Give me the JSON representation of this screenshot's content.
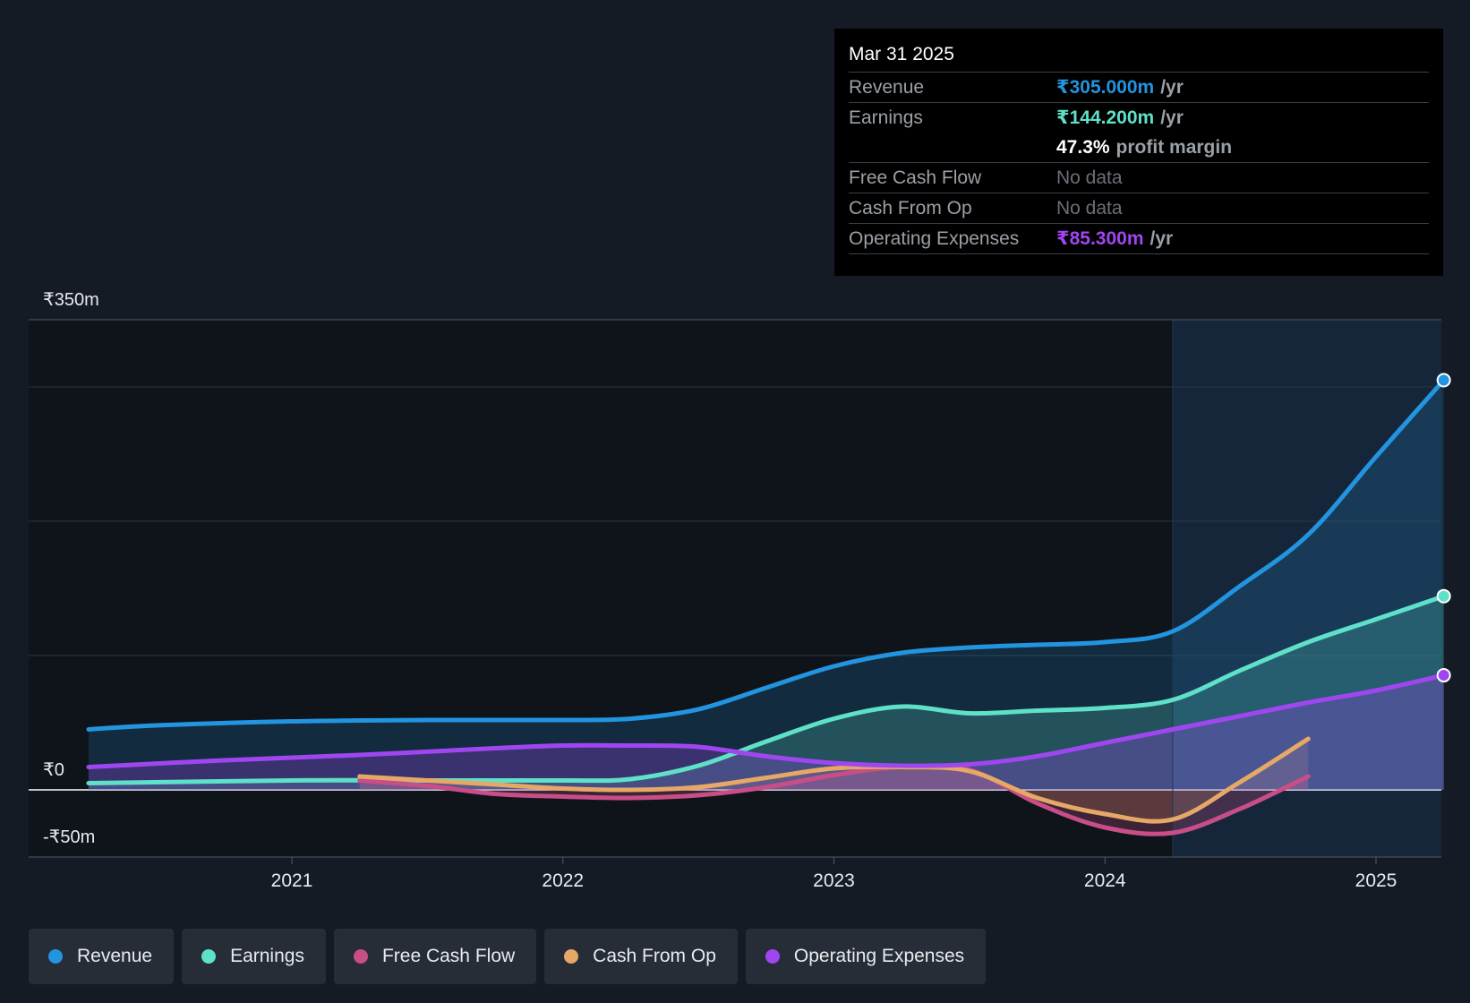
{
  "colors": {
    "background": "#151b24",
    "revenue": "#2394df",
    "earnings": "#5fe0c8",
    "free_cash_flow": "#c84e87",
    "cash_from_op": "#e5a866",
    "operating_expenses": "#a046f0",
    "past_shade": "#0f141b",
    "forecast_shade": "#16263a"
  },
  "tooltip": {
    "date": "Mar 31 2025",
    "rows": [
      {
        "label": "Revenue",
        "value": "₹305.000m",
        "unit": "/yr",
        "color": "#2394df"
      },
      {
        "label": "Earnings",
        "value": "₹144.200m",
        "unit": "/yr",
        "color": "#5fe0c8"
      },
      {
        "label": "",
        "value": "47.3%",
        "unit": "profit margin"
      },
      {
        "label": "Free Cash Flow",
        "value": "No data"
      },
      {
        "label": "Cash From Op",
        "value": "No data"
      },
      {
        "label": "Operating Expenses",
        "value": "₹85.300m",
        "unit": "/yr",
        "color": "#a046f0"
      }
    ]
  },
  "legend": [
    {
      "label": "Revenue",
      "color": "#2394df"
    },
    {
      "label": "Earnings",
      "color": "#5fe0c8"
    },
    {
      "label": "Free Cash Flow",
      "color": "#c84e87"
    },
    {
      "label": "Cash From Op",
      "color": "#e5a866"
    },
    {
      "label": "Operating Expenses",
      "color": "#a046f0"
    }
  ],
  "chart_data": {
    "type": "line",
    "title": "",
    "xlabel": "",
    "ylabel": "",
    "x_range": [
      2020.22,
      2025.25
    ],
    "ylim": [
      -50,
      350
    ],
    "y_tick_labels": [
      {
        "value": 350,
        "label": "₹350m"
      },
      {
        "value": 0,
        "label": "₹0"
      },
      {
        "value": -50,
        "label": "-₹50m"
      }
    ],
    "gridlines": [
      350,
      300,
      200,
      100,
      0,
      -50
    ],
    "x_ticks": [
      {
        "value": 2021,
        "label": "2021"
      },
      {
        "value": 2022,
        "label": "2022"
      },
      {
        "value": 2023,
        "label": "2023"
      },
      {
        "value": 2024,
        "label": "2024"
      },
      {
        "value": 2025,
        "label": "2025"
      }
    ],
    "forecast_start": 2024.25,
    "legend_position": "bottom",
    "series": [
      {
        "name": "Revenue",
        "color": "#2394df",
        "points": [
          [
            2020.25,
            45
          ],
          [
            2020.5,
            48
          ],
          [
            2021.0,
            51
          ],
          [
            2021.5,
            52
          ],
          [
            2022.0,
            52
          ],
          [
            2022.25,
            53
          ],
          [
            2022.5,
            60
          ],
          [
            2022.75,
            76
          ],
          [
            2023.0,
            92
          ],
          [
            2023.25,
            102
          ],
          [
            2023.5,
            106
          ],
          [
            2023.75,
            108
          ],
          [
            2024.0,
            110
          ],
          [
            2024.25,
            118
          ],
          [
            2024.5,
            152
          ],
          [
            2024.75,
            190
          ],
          [
            2025.0,
            248
          ],
          [
            2025.25,
            305
          ]
        ]
      },
      {
        "name": "Earnings",
        "color": "#5fe0c8",
        "points": [
          [
            2020.25,
            5
          ],
          [
            2021.0,
            7
          ],
          [
            2021.5,
            7
          ],
          [
            2022.0,
            7
          ],
          [
            2022.25,
            8
          ],
          [
            2022.5,
            18
          ],
          [
            2022.75,
            36
          ],
          [
            2023.0,
            53
          ],
          [
            2023.25,
            62
          ],
          [
            2023.5,
            57
          ],
          [
            2023.75,
            59
          ],
          [
            2024.0,
            61
          ],
          [
            2024.25,
            67
          ],
          [
            2024.5,
            89
          ],
          [
            2024.75,
            110
          ],
          [
            2025.0,
            127
          ],
          [
            2025.25,
            144.2
          ]
        ]
      },
      {
        "name": "Free Cash Flow",
        "color": "#c84e87",
        "points": [
          [
            2021.25,
            7
          ],
          [
            2021.5,
            3
          ],
          [
            2021.75,
            -3
          ],
          [
            2022.0,
            -5
          ],
          [
            2022.25,
            -6
          ],
          [
            2022.5,
            -4
          ],
          [
            2022.75,
            2
          ],
          [
            2023.0,
            11
          ],
          [
            2023.25,
            17
          ],
          [
            2023.5,
            15
          ],
          [
            2023.75,
            -10
          ],
          [
            2024.0,
            -28
          ],
          [
            2024.25,
            -32
          ],
          [
            2024.5,
            -14
          ],
          [
            2024.75,
            10
          ]
        ]
      },
      {
        "name": "Cash From Op",
        "color": "#e5a866",
        "points": [
          [
            2021.25,
            10
          ],
          [
            2021.5,
            7
          ],
          [
            2021.75,
            4
          ],
          [
            2022.0,
            1
          ],
          [
            2022.25,
            0
          ],
          [
            2022.5,
            2
          ],
          [
            2022.75,
            9
          ],
          [
            2023.0,
            16
          ],
          [
            2023.25,
            17
          ],
          [
            2023.5,
            14
          ],
          [
            2023.75,
            -6
          ],
          [
            2024.0,
            -18
          ],
          [
            2024.25,
            -22
          ],
          [
            2024.5,
            6
          ],
          [
            2024.75,
            38
          ]
        ]
      },
      {
        "name": "Operating Expenses",
        "color": "#a046f0",
        "points": [
          [
            2020.25,
            17
          ],
          [
            2020.75,
            22
          ],
          [
            2021.25,
            26
          ],
          [
            2021.75,
            31
          ],
          [
            2022.0,
            33
          ],
          [
            2022.25,
            33
          ],
          [
            2022.5,
            32
          ],
          [
            2022.75,
            25
          ],
          [
            2023.0,
            20
          ],
          [
            2023.25,
            18
          ],
          [
            2023.5,
            19
          ],
          [
            2023.75,
            25
          ],
          [
            2024.0,
            35
          ],
          [
            2024.25,
            45
          ],
          [
            2024.5,
            55
          ],
          [
            2024.75,
            65
          ],
          [
            2025.0,
            74
          ],
          [
            2025.25,
            85.3
          ]
        ]
      }
    ]
  }
}
